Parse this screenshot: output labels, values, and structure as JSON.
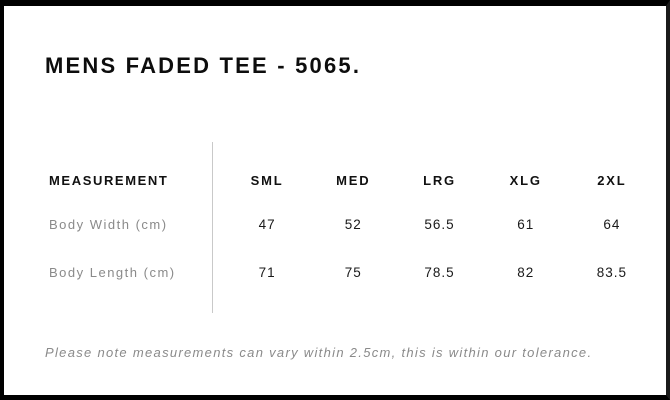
{
  "header": {
    "title": "MENS FADED TEE - 5065."
  },
  "chart_data": {
    "type": "table",
    "title": "MENS FADED TEE - 5065.",
    "row_header_label": "MEASUREMENT",
    "columns": [
      "SML",
      "MED",
      "LRG",
      "XLG",
      "2XL"
    ],
    "rows": [
      {
        "label": "Body Width (cm)",
        "values": [
          "47",
          "52",
          "56.5",
          "61",
          "64"
        ]
      },
      {
        "label": "Body Length (cm)",
        "values": [
          "71",
          "75",
          "78.5",
          "82",
          "83.5"
        ]
      }
    ],
    "footnote": "Please note measurements can vary within 2.5cm, this is within our tolerance."
  },
  "footer": {
    "note": "Please note measurements can vary within 2.5cm, this is within our tolerance."
  },
  "colors": {
    "background": "#ffffff",
    "border": "#000000",
    "heading_text": "#0d0d0d",
    "table_header_text": "#111111",
    "value_text": "#1a1a1a",
    "muted_text": "#8a8a8a",
    "divider": "#c9c9c9"
  }
}
